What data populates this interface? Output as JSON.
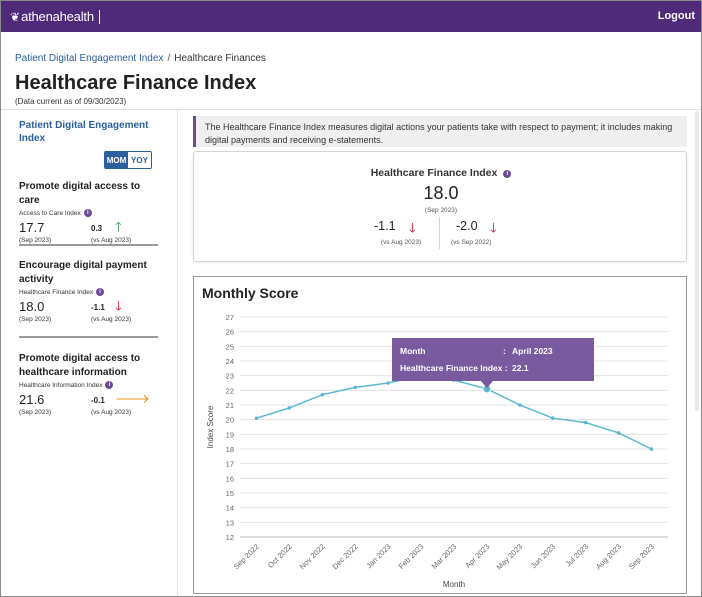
{
  "header": {
    "logo_text": "athenahealth",
    "logout_label": "Logout"
  },
  "breadcrumb": {
    "parent": "Patient Digital Engagement Index",
    "separator": "/",
    "current": "Healthcare Finances"
  },
  "page": {
    "title": "Healthcare Finance Index",
    "data_current": "(Data current as of 09/30/2023)"
  },
  "sidebar": {
    "title": "Patient Digital Engagement Index",
    "toggle": {
      "mom": "MOM",
      "yoy": "YOY",
      "selected": "MOM"
    },
    "metrics": [
      {
        "title": "Promote digital access to care",
        "index_name": "Access to Care Index",
        "value": "17.7",
        "value_period": "(Sep 2023)",
        "change": "0.3",
        "change_period": "(vs Aug 2023)",
        "direction": "up",
        "arrow": "🡑"
      },
      {
        "title": "Encourage digital payment activity",
        "index_name": "Healthcare Finance Index",
        "value": "18.0",
        "value_period": "(Sep 2023)",
        "change": "-1.1",
        "change_period": "(vs Aug 2023)",
        "direction": "down",
        "arrow": "🡓"
      },
      {
        "title": "Promote digital access to healthcare information",
        "index_name": "Healthcare Information Index",
        "value": "21.6",
        "value_period": "(Sep 2023)",
        "change": "-0.1",
        "change_period": "(vs Aug 2023)",
        "direction": "right",
        "arrow": "🡒"
      }
    ]
  },
  "banner": {
    "text": "The Healthcare Finance Index measures digital actions your patients take with respect to payment; it includes making digital payments and receiving e-statements."
  },
  "kpi": {
    "title": "Healthcare Finance Index",
    "value": "18.0",
    "value_period": "(Sep 2023)",
    "mom_change": "-1.1",
    "mom_period": "(vs Aug 2023)",
    "yoy_change": "-2.0",
    "yoy_period": "(vs Sep 2022)",
    "arrow": "🡓"
  },
  "colors": {
    "brand_purple": "#4f2a78",
    "link_blue": "#2b5f9e",
    "up_green": "#2e8b3a",
    "down_red": "#c8102e",
    "flat_orange": "#e8901c",
    "line_color": "#5bb8d0",
    "tooltip_bg": "#7a5a9e"
  },
  "chart_data": {
    "type": "line",
    "title": "Monthly Score",
    "xlabel": "Month",
    "ylabel": "Index Score",
    "ylim": [
      12,
      27
    ],
    "yticks": [
      12,
      13,
      14,
      15,
      16,
      17,
      18,
      19,
      20,
      21,
      22,
      23,
      24,
      25,
      26,
      27
    ],
    "grid": true,
    "categories": [
      "Sep 2022",
      "Oct 2022",
      "Nov 2022",
      "Dec 2022",
      "Jan 2023",
      "Feb 2023",
      "Mar 2023",
      "Apr 2023",
      "May 2023",
      "Jun 2023",
      "Jul 2023",
      "Aug 2023",
      "Sep 2023"
    ],
    "series": [
      {
        "values": [
          20.1,
          20.8,
          21.7,
          22.2,
          22.5,
          23.0,
          22.7,
          22.1,
          21.0,
          20.1,
          19.8,
          19.1,
          18.0
        ]
      }
    ],
    "tooltip": {
      "month_label": "Month",
      "month_value": "April 2023",
      "index_label": "Healthcare Finance Index",
      "index_value": "22.1",
      "category_index": 7
    }
  }
}
